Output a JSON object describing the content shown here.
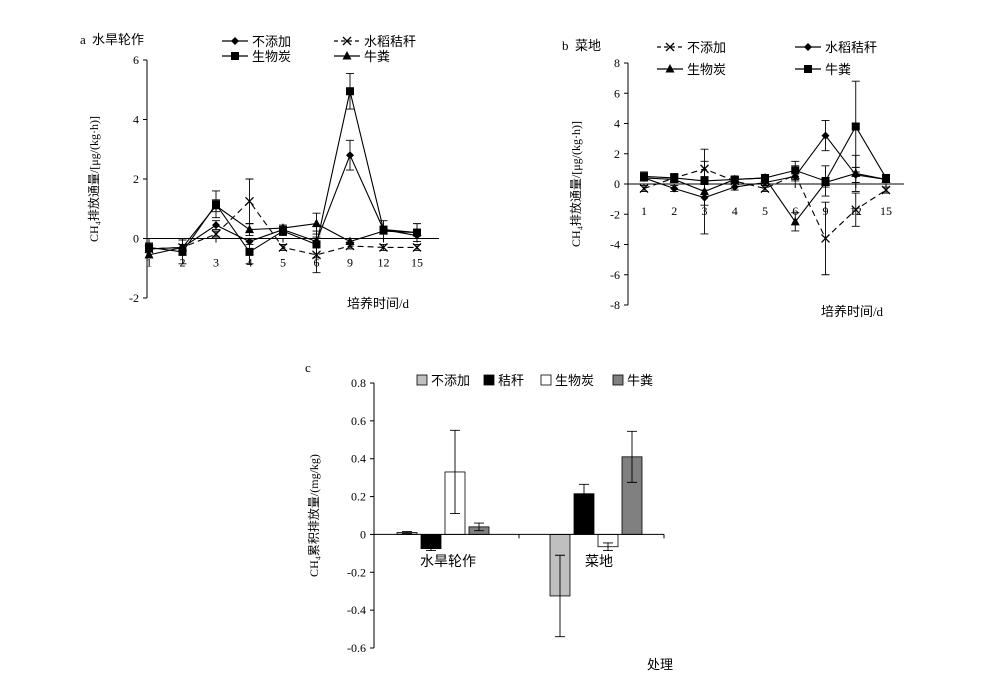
{
  "chart_data": [
    {
      "panel": "a",
      "type": "line",
      "title": "水旱轮作",
      "xlabel": "培养时间/d",
      "ylabel": "CH₄排放通量/[μg/(kg·h)]",
      "ylim": [
        -2,
        6
      ],
      "yticks": [
        -2,
        0,
        2,
        4,
        6
      ],
      "categories": [
        "1",
        "2",
        "3",
        "4",
        "5",
        "6",
        "9",
        "12",
        "15"
      ],
      "legend": "top",
      "series": [
        {
          "name": "不添加",
          "marker": "diamond",
          "values": [
            -0.35,
            -0.3,
            0.45,
            -0.1,
            0.3,
            -0.1,
            2.8,
            0.3,
            0.1
          ],
          "err": [
            0.1,
            0.1,
            0.15,
            0.1,
            0.1,
            0.1,
            0.5,
            0.1,
            0.1
          ]
        },
        {
          "name": "水稻秸秆",
          "marker": "x",
          "values": [
            -0.35,
            -0.3,
            0.15,
            1.25,
            -0.3,
            -0.55,
            -0.25,
            -0.3,
            -0.3
          ],
          "err": [
            0.1,
            0.1,
            0.1,
            0.75,
            0.1,
            0.6,
            0.1,
            0.1,
            0.1
          ]
        },
        {
          "name": "生物炭",
          "marker": "square",
          "values": [
            -0.3,
            -0.45,
            1.15,
            -0.45,
            0.25,
            -0.2,
            4.95,
            0.3,
            0.2
          ],
          "err": [
            0.15,
            0.4,
            0.45,
            0.4,
            0.15,
            0.45,
            0.6,
            0.3,
            0.3
          ]
        },
        {
          "name": "牛粪",
          "marker": "triangle",
          "values": [
            -0.55,
            -0.3,
            1.1,
            0.3,
            0.35,
            0.5,
            -0.1,
            0.25,
            0.2
          ],
          "err": [
            0.1,
            0.1,
            0.2,
            0.2,
            0.1,
            0.35,
            0.1,
            0.1,
            0.1
          ]
        }
      ]
    },
    {
      "panel": "b",
      "type": "line",
      "title": "菜地",
      "xlabel": "培养时间/d",
      "ylabel": "CH₄排放通量/[μg/(kg·h)]",
      "ylim": [
        -8,
        8
      ],
      "yticks": [
        -8,
        -6,
        -4,
        -2,
        0,
        2,
        4,
        6,
        8
      ],
      "categories": [
        "1",
        "2",
        "3",
        "4",
        "5",
        "6",
        "9",
        "12",
        "15"
      ],
      "legend": "top",
      "series": [
        {
          "name": "不添加",
          "marker": "x",
          "values": [
            -0.3,
            0.4,
            1.0,
            0.2,
            -0.3,
            0.6,
            -3.6,
            -1.7,
            -0.4
          ],
          "err": [
            0.2,
            0.2,
            0.5,
            0.2,
            0.2,
            0.6,
            2.4,
            1.1,
            0.2
          ]
        },
        {
          "name": "水稻秸秆",
          "marker": "diamond",
          "values": [
            0.4,
            -0.3,
            -0.9,
            -0.2,
            0.1,
            0.5,
            3.2,
            0.6,
            0.3
          ],
          "err": [
            0.2,
            0.2,
            0.5,
            0.2,
            0.2,
            0.3,
            1.0,
            0.5,
            0.2
          ]
        },
        {
          "name": "生物炭",
          "marker": "triangle",
          "values": [
            0.4,
            0.3,
            -0.5,
            0.3,
            0.4,
            -2.5,
            0.1,
            0.7,
            0.3
          ],
          "err": [
            0.2,
            0.2,
            2.8,
            0.2,
            0.2,
            0.6,
            0.3,
            1.2,
            0.2
          ]
        },
        {
          "name": "牛粪",
          "marker": "square",
          "values": [
            0.5,
            0.4,
            0.2,
            0.3,
            0.4,
            0.9,
            0.2,
            3.8,
            0.4
          ],
          "err": [
            0.3,
            0.3,
            0.2,
            0.2,
            0.2,
            0.6,
            1.0,
            3.0,
            0.2
          ]
        }
      ]
    },
    {
      "panel": "c",
      "type": "bar",
      "xlabel": "处理",
      "ylabel": "CH₄累积排放量/(mg/kg)",
      "ylim": [
        -0.6,
        0.8
      ],
      "yticks": [
        -0.6,
        -0.4,
        -0.2,
        0,
        0.2,
        0.4,
        0.6,
        0.8
      ],
      "categories": [
        "水旱轮作",
        "菜地"
      ],
      "legend": "top",
      "series": [
        {
          "name": "不添加",
          "color": "#bfbfbf",
          "values": [
            0.01,
            -0.325
          ],
          "err": [
            0.005,
            0.215
          ]
        },
        {
          "name": "秸秆",
          "color": "#000000",
          "values": [
            -0.075,
            0.215
          ],
          "err": [
            0.01,
            0.05
          ]
        },
        {
          "name": "生物炭",
          "color": "#ffffff",
          "values": [
            0.33,
            -0.065
          ],
          "err": [
            0.22,
            0.02
          ]
        },
        {
          "name": "牛粪",
          "color": "#808080",
          "values": [
            0.04,
            0.41
          ],
          "err": [
            0.02,
            0.135
          ]
        }
      ]
    }
  ]
}
